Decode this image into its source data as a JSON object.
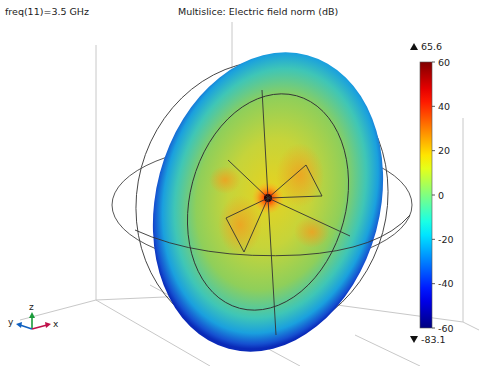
{
  "chart_data": {
    "type": "multislice",
    "title": "freq(11)=3.5 GHz",
    "subtitle": "Multislice: Electric field norm (dB)",
    "colorbar_range": [
      -60,
      60
    ],
    "colorbar_ticks": [
      -60,
      -40,
      -20,
      0,
      20,
      40,
      60
    ],
    "max": 65.6,
    "min": -83.1,
    "axis_labels": {
      "x": "x",
      "y": "y",
      "z": "z"
    }
  }
}
